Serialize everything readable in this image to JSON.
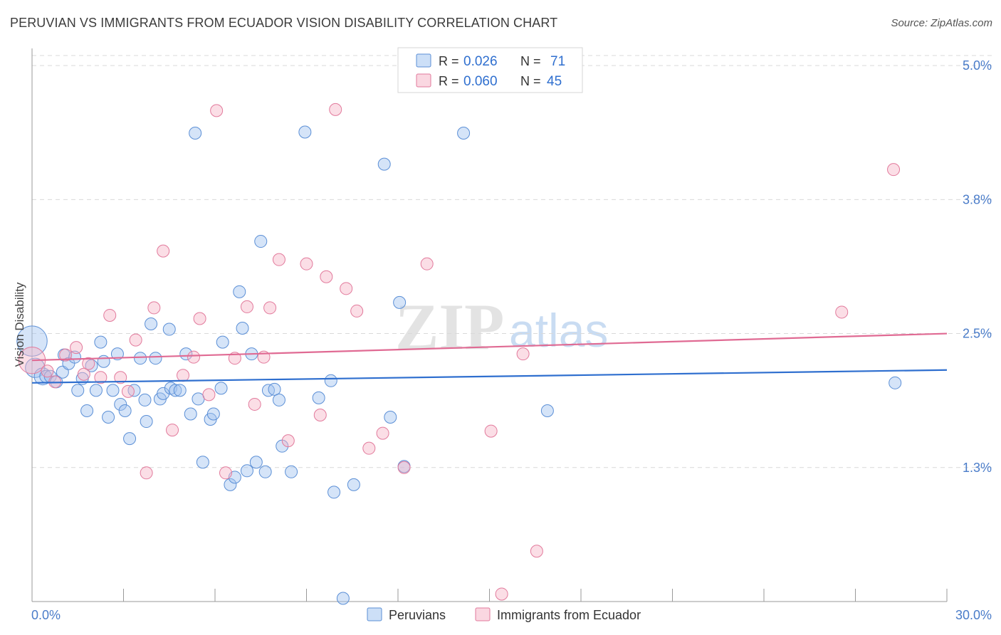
{
  "header": {
    "title": "PERUVIAN VS IMMIGRANTS FROM ECUADOR VISION DISABILITY CORRELATION CHART",
    "source": "Source: ZipAtlas.com"
  },
  "watermark": {
    "zip": "ZIP",
    "atlas": "atlas"
  },
  "colors": {
    "peruvians_fill": "rgba(162,196,240,0.45)",
    "peruvians_stroke": "#5b8fd6",
    "peruvians_line": "#2f6fcf",
    "ecuador_fill": "rgba(246,182,200,0.45)",
    "ecuador_stroke": "#e27a9c",
    "ecuador_line": "#e06a93",
    "tick_text": "#4a7cc9",
    "grid": "#d9d9d9"
  },
  "chart_data": {
    "type": "scatter",
    "title": "PERUVIAN VS IMMIGRANTS FROM ECUADOR VISION DISABILITY CORRELATION CHART",
    "xlabel": "",
    "ylabel": "Vision Disability",
    "xlim": [
      0,
      30
    ],
    "ylim": [
      0,
      5.2
    ],
    "x_tick_labels": [
      "0.0%",
      "30.0%"
    ],
    "y_ticks": [
      1.25,
      2.5,
      3.75,
      5.0
    ],
    "y_tick_labels": [
      "1.3%",
      "2.5%",
      "3.8%",
      "5.0%"
    ],
    "legend": {
      "position": "top-center",
      "rows": [
        {
          "r_label": "R =",
          "r_value": "0.026",
          "n_label": "N =",
          "n_value": "71"
        },
        {
          "r_label": "R =",
          "r_value": "0.060",
          "n_label": "N =",
          "n_value": "45"
        }
      ]
    },
    "bottom_legend": [
      "Peruvians",
      "Immigrants from Ecuador"
    ],
    "series": [
      {
        "name": "Peruvians",
        "trend": [
          [
            0,
            2.04
          ],
          [
            30,
            2.16
          ]
        ],
        "points": [
          [
            0.0,
            2.43,
            2.5
          ],
          [
            0.1,
            2.18,
            1.6
          ],
          [
            0.35,
            2.1,
            1.4
          ],
          [
            0.45,
            2.1,
            1
          ],
          [
            0.6,
            2.1,
            1
          ],
          [
            0.8,
            2.05,
            1
          ],
          [
            1.0,
            2.14,
            1
          ],
          [
            1.05,
            2.3,
            1
          ],
          [
            1.2,
            2.22,
            1
          ],
          [
            1.4,
            2.28,
            1
          ],
          [
            1.5,
            1.97,
            1
          ],
          [
            1.65,
            2.08,
            1
          ],
          [
            1.8,
            1.78,
            1
          ],
          [
            1.95,
            2.2,
            1
          ],
          [
            2.1,
            1.97,
            1
          ],
          [
            2.25,
            2.42,
            1
          ],
          [
            2.35,
            2.24,
            1
          ],
          [
            2.5,
            1.72,
            1
          ],
          [
            2.65,
            1.97,
            1
          ],
          [
            2.8,
            2.31,
            1
          ],
          [
            2.9,
            1.84,
            1
          ],
          [
            3.05,
            1.78,
            1
          ],
          [
            3.2,
            1.52,
            1
          ],
          [
            3.35,
            1.97,
            1
          ],
          [
            3.55,
            2.27,
            1
          ],
          [
            3.7,
            1.88,
            1
          ],
          [
            3.75,
            1.68,
            1
          ],
          [
            3.9,
            2.59,
            1
          ],
          [
            4.05,
            2.27,
            1
          ],
          [
            4.2,
            1.89,
            1
          ],
          [
            4.3,
            1.94,
            1
          ],
          [
            4.5,
            2.54,
            1
          ],
          [
            4.55,
            1.99,
            1
          ],
          [
            4.7,
            1.97,
            1
          ],
          [
            4.85,
            1.97,
            1
          ],
          [
            5.05,
            2.31,
            1
          ],
          [
            5.2,
            1.75,
            1
          ],
          [
            5.35,
            4.37,
            1
          ],
          [
            5.45,
            1.89,
            1
          ],
          [
            5.6,
            1.3,
            1
          ],
          [
            5.85,
            1.7,
            1
          ],
          [
            5.95,
            1.75,
            1
          ],
          [
            6.2,
            1.99,
            1
          ],
          [
            6.25,
            2.42,
            1
          ],
          [
            6.5,
            1.09,
            1
          ],
          [
            6.65,
            1.16,
            1
          ],
          [
            6.8,
            2.89,
            1
          ],
          [
            6.9,
            2.55,
            1
          ],
          [
            7.05,
            1.22,
            1
          ],
          [
            7.2,
            2.31,
            1
          ],
          [
            7.35,
            1.3,
            1
          ],
          [
            7.5,
            3.36,
            1
          ],
          [
            7.65,
            1.21,
            1
          ],
          [
            7.75,
            1.97,
            1
          ],
          [
            7.95,
            1.98,
            1
          ],
          [
            8.1,
            1.88,
            1
          ],
          [
            8.2,
            1.45,
            1
          ],
          [
            8.5,
            1.21,
            1
          ],
          [
            8.95,
            4.38,
            1
          ],
          [
            9.4,
            1.9,
            1
          ],
          [
            9.8,
            2.06,
            1
          ],
          [
            9.9,
            1.02,
            1
          ],
          [
            10.2,
            0.03,
            1
          ],
          [
            10.55,
            1.09,
            1
          ],
          [
            11.55,
            4.08,
            1
          ],
          [
            11.75,
            1.72,
            1
          ],
          [
            12.05,
            2.79,
            1
          ],
          [
            12.2,
            1.26,
            1
          ],
          [
            14.15,
            4.37,
            1
          ],
          [
            16.9,
            1.78,
            1
          ],
          [
            28.3,
            2.04,
            1
          ]
        ]
      },
      {
        "name": "Immigrants from Ecuador",
        "trend": [
          [
            0,
            2.25
          ],
          [
            30,
            2.5
          ]
        ],
        "points": [
          [
            0.0,
            2.25,
            2.2
          ],
          [
            0.5,
            2.15,
            1
          ],
          [
            1.1,
            2.3,
            1
          ],
          [
            1.45,
            2.37,
            1
          ],
          [
            1.7,
            2.12,
            1
          ],
          [
            1.85,
            2.22,
            1
          ],
          [
            2.25,
            2.09,
            1
          ],
          [
            2.55,
            2.67,
            1
          ],
          [
            2.9,
            2.09,
            1
          ],
          [
            3.15,
            1.96,
            1
          ],
          [
            3.4,
            2.44,
            1
          ],
          [
            3.75,
            1.2,
            1
          ],
          [
            4.0,
            2.74,
            1
          ],
          [
            4.3,
            3.27,
            1
          ],
          [
            4.6,
            1.6,
            1
          ],
          [
            4.95,
            2.11,
            1
          ],
          [
            5.3,
            2.28,
            1
          ],
          [
            5.5,
            2.64,
            1
          ],
          [
            5.8,
            1.93,
            1
          ],
          [
            6.05,
            4.58,
            1
          ],
          [
            6.35,
            1.2,
            1
          ],
          [
            6.65,
            2.27,
            1
          ],
          [
            7.05,
            2.75,
            1
          ],
          [
            7.3,
            1.84,
            1
          ],
          [
            7.6,
            2.28,
            1
          ],
          [
            7.8,
            2.74,
            1
          ],
          [
            8.1,
            3.19,
            1
          ],
          [
            8.4,
            1.5,
            1
          ],
          [
            9.0,
            3.15,
            1
          ],
          [
            9.45,
            1.74,
            1
          ],
          [
            9.65,
            3.03,
            1
          ],
          [
            9.95,
            4.59,
            1
          ],
          [
            10.3,
            2.92,
            1
          ],
          [
            10.65,
            2.71,
            1
          ],
          [
            11.05,
            1.43,
            1
          ],
          [
            11.5,
            1.57,
            1
          ],
          [
            12.2,
            1.25,
            1
          ],
          [
            12.95,
            3.15,
            1
          ],
          [
            15.05,
            1.59,
            1
          ],
          [
            15.4,
            0.07,
            1
          ],
          [
            16.1,
            2.31,
            1
          ],
          [
            16.55,
            0.47,
            1
          ],
          [
            26.55,
            2.7,
            1
          ],
          [
            28.25,
            4.03,
            1
          ],
          [
            0.75,
            2.05,
            1
          ]
        ]
      }
    ]
  }
}
